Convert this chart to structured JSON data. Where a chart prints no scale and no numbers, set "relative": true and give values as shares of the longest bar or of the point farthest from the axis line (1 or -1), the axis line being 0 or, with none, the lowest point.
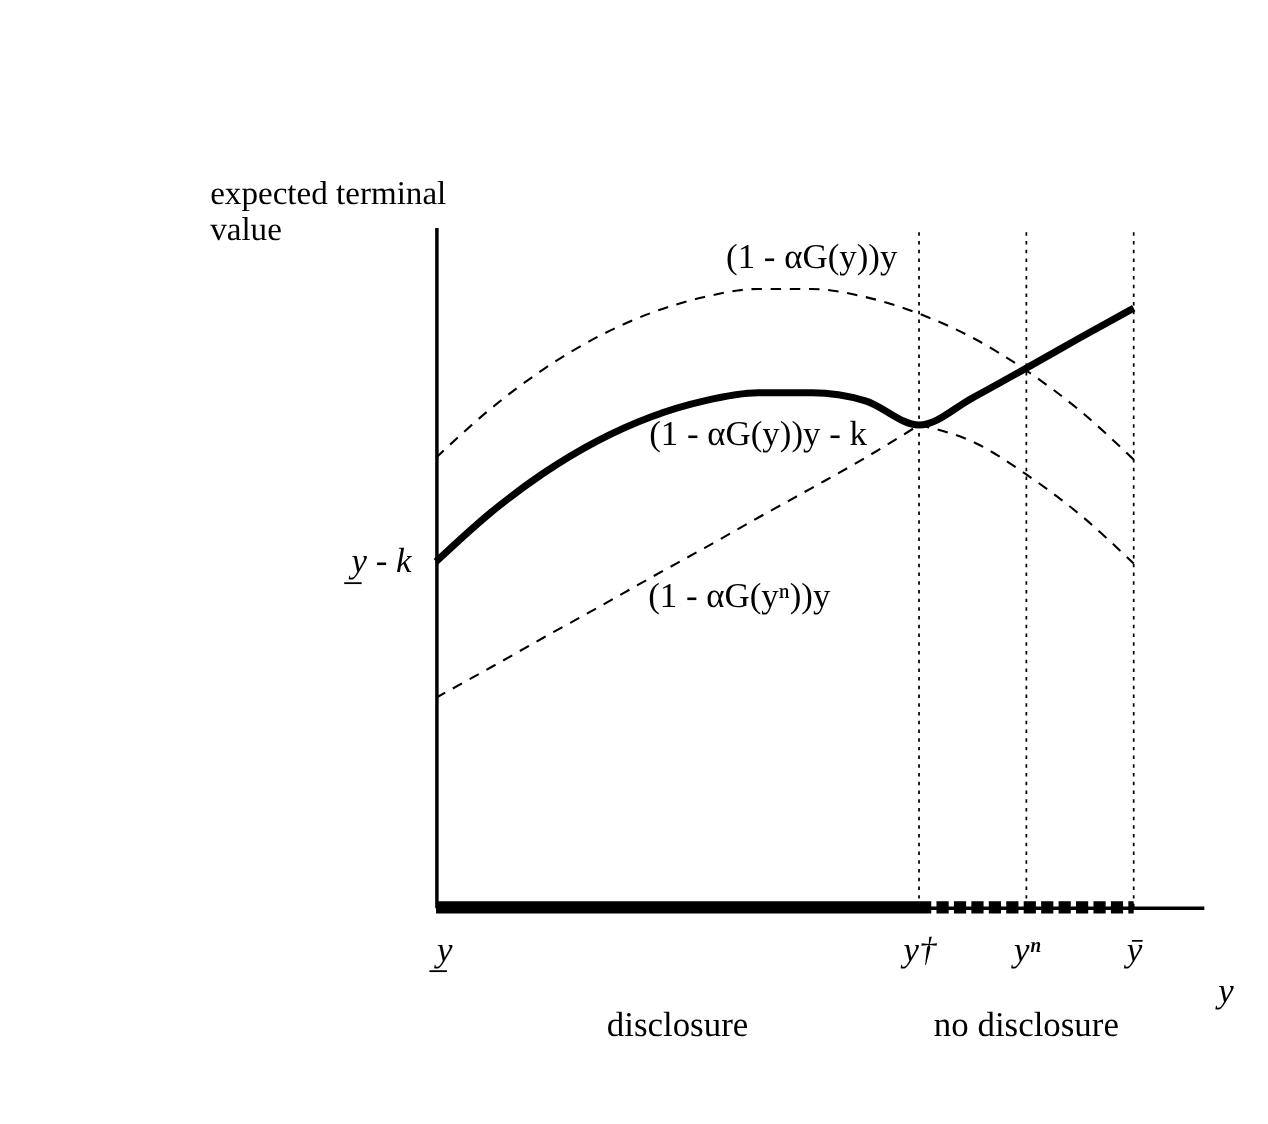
{
  "chart_data": {
    "type": "line",
    "relative": true,
    "ylabel": "expected terminal value",
    "xlabel": "y",
    "categories": [
      "y̲",
      null,
      null,
      null,
      null,
      null,
      null,
      null,
      null,
      "y†",
      null,
      "yⁿ",
      null,
      "ȳ"
    ],
    "series": [
      {
        "name": "(1 - αG(y))y",
        "color": "#000000",
        "line_style": "dashed",
        "values": [
          0.727,
          0.805,
          0.87,
          0.922,
          0.961,
          0.987,
          1.0,
          1.0,
          0.987,
          0.96,
          0.921,
          0.868,
          0.803,
          0.724
        ]
      },
      {
        "name": "(1 - αG(y))y - k",
        "color": "#000000",
        "line_style": "solid",
        "values": [
          0.559,
          0.637,
          0.702,
          0.754,
          0.793,
          0.819,
          0.832,
          0.832,
          0.819,
          0.78,
          0.824,
          0.872,
          0.921,
          0.969
        ]
      },
      {
        "name": "(1 - αG(yⁿ))y",
        "color": "#000000",
        "line_style": "dashed",
        "values": [
          0.339,
          0.387,
          0.436,
          0.484,
          0.533,
          0.581,
          0.63,
          0.678,
          0.727,
          0.78,
          null,
          null,
          null,
          null
        ]
      },
      {
        "color": "#000000",
        "line_style": "dashed",
        "values": [
          null,
          null,
          null,
          null,
          null,
          null,
          null,
          null,
          null,
          0.78,
          0.753,
          0.7,
          0.635,
          0.556
        ]
      },
      {
        "color": "#000000",
        "line_style": "solid",
        "values": [
          0,
          0,
          0,
          0,
          0,
          0,
          0,
          0,
          0,
          0,
          null,
          null,
          null,
          null
        ]
      },
      {
        "color": "#000000",
        "line_style": "dashed",
        "values": [
          null,
          null,
          null,
          null,
          null,
          null,
          null,
          null,
          null,
          0,
          0,
          0,
          0,
          0
        ]
      }
    ],
    "annotations": [
      {
        "text": "y̲ - k",
        "x": "y̲",
        "y": 0.559
      },
      "disclosure",
      "no disclosure"
    ],
    "ref_lines": [
      {
        "axis": "x",
        "value": "y†",
        "line_style": "dotted",
        "color": "#000000"
      },
      {
        "axis": "x",
        "value": "yⁿ",
        "line_style": "dotted",
        "color": "#000000"
      },
      {
        "axis": "x",
        "value": "ȳ",
        "line_style": "dotted",
        "color": "#000000"
      }
    ]
  }
}
